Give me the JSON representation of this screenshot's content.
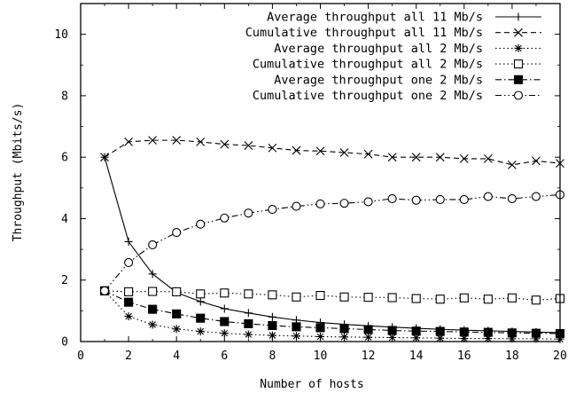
{
  "chart_data": {
    "type": "line",
    "title": "",
    "xlabel": "Number of hosts",
    "ylabel": "Throughput (Mbits/s)",
    "xlim": [
      0,
      20
    ],
    "ylim": [
      0,
      11
    ],
    "xticks": [
      "0",
      "2",
      "4",
      "6",
      "8",
      "10",
      "12",
      "14",
      "16",
      "18",
      "20"
    ],
    "yticks": [
      "0",
      "2",
      "4",
      "6",
      "8",
      "10"
    ],
    "grid": false,
    "legend_position": "top-right",
    "x": [
      1,
      2,
      3,
      4,
      5,
      6,
      7,
      8,
      9,
      10,
      11,
      12,
      13,
      14,
      15,
      16,
      17,
      18,
      19,
      20
    ],
    "series": [
      {
        "name": "Average throughput all 11 Mb/s",
        "marker": "plus",
        "dash": "solid",
        "values": [
          6.0,
          3.25,
          2.2,
          1.6,
          1.3,
          1.07,
          0.93,
          0.8,
          0.7,
          0.62,
          0.56,
          0.51,
          0.47,
          0.43,
          0.4,
          0.37,
          0.35,
          0.33,
          0.31,
          0.29
        ]
      },
      {
        "name": "Cumulative throughput all 11 Mb/s",
        "marker": "x",
        "dash": "dashed",
        "values": [
          6.0,
          6.5,
          6.55,
          6.55,
          6.5,
          6.42,
          6.38,
          6.3,
          6.22,
          6.2,
          6.15,
          6.1,
          6.0,
          6.0,
          6.0,
          5.95,
          5.95,
          5.75,
          5.88,
          5.8
        ]
      },
      {
        "name": "Average throughput all 2 Mb/s",
        "marker": "star",
        "dash": "dotted",
        "values": [
          1.65,
          0.82,
          0.55,
          0.41,
          0.33,
          0.27,
          0.23,
          0.2,
          0.18,
          0.16,
          0.15,
          0.14,
          0.13,
          0.12,
          0.11,
          0.1,
          0.1,
          0.09,
          0.09,
          0.08
        ]
      },
      {
        "name": "Cumulative throughput all 2 Mb/s",
        "marker": "open-square",
        "dash": "dotted",
        "values": [
          1.65,
          1.62,
          1.63,
          1.62,
          1.55,
          1.58,
          1.55,
          1.52,
          1.45,
          1.5,
          1.45,
          1.44,
          1.43,
          1.4,
          1.38,
          1.42,
          1.38,
          1.42,
          1.35,
          1.4
        ]
      },
      {
        "name": "Average throughput one 2 Mb/s",
        "marker": "filled-square",
        "dash": "dashdot",
        "values": [
          1.65,
          1.28,
          1.05,
          0.9,
          0.76,
          0.65,
          0.58,
          0.52,
          0.48,
          0.45,
          0.42,
          0.39,
          0.36,
          0.34,
          0.33,
          0.31,
          0.3,
          0.28,
          0.27,
          0.26
        ]
      },
      {
        "name": "Cumulative throughput one 2 Mb/s",
        "marker": "open-circle",
        "dash": "dashdotdot",
        "values": [
          1.65,
          2.57,
          3.15,
          3.55,
          3.82,
          4.02,
          4.18,
          4.3,
          4.4,
          4.48,
          4.5,
          4.55,
          4.65,
          4.6,
          4.62,
          4.62,
          4.72,
          4.65,
          4.72,
          4.78
        ]
      }
    ]
  }
}
